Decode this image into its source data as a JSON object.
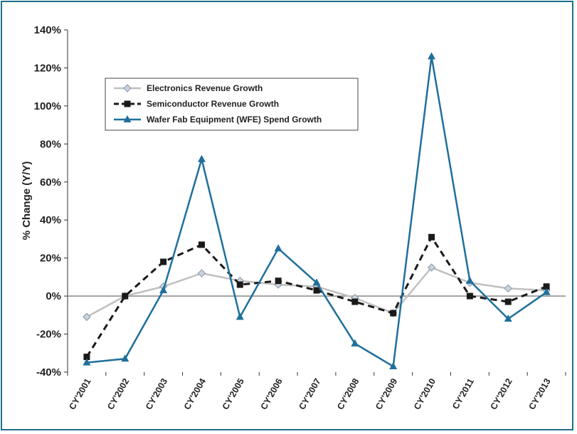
{
  "chart_data": {
    "type": "line",
    "title": "",
    "xlabel": "",
    "ylabel": "% Change (Y/Y)",
    "categories": [
      "CY'2001",
      "CY'2002",
      "CY'2003",
      "CY'2004",
      "CY'2005",
      "CY'2006",
      "CY'2007",
      "CY'2008",
      "CY'2009",
      "CY'2010",
      "CY'2011",
      "CY'2012",
      "CY'2013"
    ],
    "ylim": [
      -40,
      140
    ],
    "yticks": [
      -40,
      -20,
      0,
      20,
      40,
      60,
      80,
      100,
      120,
      140
    ],
    "ytick_labels": [
      "-40%",
      "-20%",
      "0%",
      "20%",
      "40%",
      "60%",
      "80%",
      "100%",
      "120%",
      "140%"
    ],
    "grid": false,
    "legend_position": "top-left",
    "series": [
      {
        "name": "Electronics Revenue Growth",
        "color": "#c0c0c0",
        "marker": "diamond",
        "dash": "solid",
        "values": [
          -11,
          0,
          5,
          12,
          8,
          6,
          5,
          -1,
          -9,
          15,
          7,
          4,
          3
        ]
      },
      {
        "name": "Semiconductor Revenue Growth",
        "color": "#1a1a1a",
        "marker": "square",
        "dash": "dashed",
        "values": [
          -32,
          0,
          18,
          27,
          6,
          8,
          3,
          -3,
          -9,
          31,
          0,
          -3,
          5
        ]
      },
      {
        "name": "Wafer Fab Equipment (WFE) Spend Growth",
        "color": "#1f6f9c",
        "marker": "triangle",
        "dash": "solid",
        "values": [
          -35,
          -33,
          3,
          72,
          -11,
          25,
          7,
          -25,
          -37,
          126,
          8,
          -12,
          2
        ]
      }
    ]
  }
}
